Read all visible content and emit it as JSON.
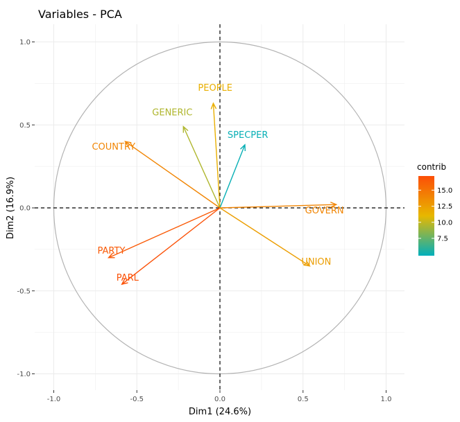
{
  "chart_data": {
    "type": "scatter",
    "title": "Variables - PCA",
    "xlabel": "Dim1 (24.6%)",
    "ylabel": "Dim2 (16.9%)",
    "xlim": [
      -1.0,
      1.0
    ],
    "ylim": [
      -1.0,
      1.0
    ],
    "x_ticks": [
      "-1.0",
      "-0.5",
      "0.0",
      "0.5",
      "1.0"
    ],
    "y_ticks": [
      "1.0",
      "0.5",
      "0.0",
      "-0.5",
      "-1.0"
    ],
    "grid": true,
    "correlation_circle": true,
    "variables": [
      {
        "name": "PEOPLE",
        "x": -0.04,
        "y": 0.63,
        "contrib": 11.5
      },
      {
        "name": "GENERIC",
        "x": -0.22,
        "y": 0.49,
        "contrib": 9.5
      },
      {
        "name": "SPECPER",
        "x": 0.15,
        "y": 0.38,
        "contrib": 5.0
      },
      {
        "name": "COUNTRY",
        "x": -0.57,
        "y": 0.4,
        "contrib": 14.0
      },
      {
        "name": "GOVERN",
        "x": 0.7,
        "y": 0.02,
        "contrib": 14.0
      },
      {
        "name": "UNION",
        "x": 0.54,
        "y": -0.35,
        "contrib": 12.5
      },
      {
        "name": "PARTY",
        "x": -0.67,
        "y": -0.3,
        "contrib": 16.5
      },
      {
        "name": "PARL",
        "x": -0.59,
        "y": -0.46,
        "contrib": 17.0
      }
    ],
    "legend": {
      "title": "contrib",
      "position": "right",
      "ticks": [
        "15.0",
        "12.5",
        "10.0",
        "7.5"
      ],
      "tick_values": [
        15.0,
        12.5,
        10.0,
        7.5
      ],
      "min": 4.8,
      "max": 17.2,
      "colors": [
        "#00afbb",
        "#e7b800",
        "#fc4e07"
      ]
    }
  }
}
